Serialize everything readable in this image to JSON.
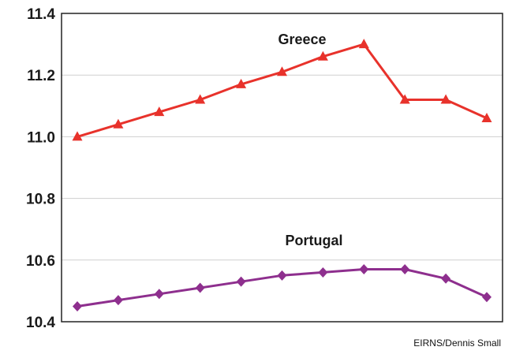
{
  "chart_data": {
    "type": "line",
    "ylim": [
      10.4,
      11.4
    ],
    "yticks": [
      "10.4",
      "10.6",
      "10.8",
      "11.0",
      "11.2",
      "11.4"
    ],
    "grid": true,
    "series": [
      {
        "name": "Greece",
        "color": "#e8322b",
        "marker": "triangle",
        "values": [
          11.0,
          11.04,
          11.08,
          11.12,
          11.17,
          11.21,
          11.26,
          11.3,
          11.12,
          11.12,
          11.06
        ]
      },
      {
        "name": "Portugal",
        "color": "#8e2f8e",
        "marker": "diamond",
        "values": [
          10.45,
          10.47,
          10.49,
          10.51,
          10.53,
          10.55,
          10.56,
          10.57,
          10.57,
          10.54,
          10.48
        ]
      }
    ]
  },
  "credit": "EIRNS/Dennis Small"
}
